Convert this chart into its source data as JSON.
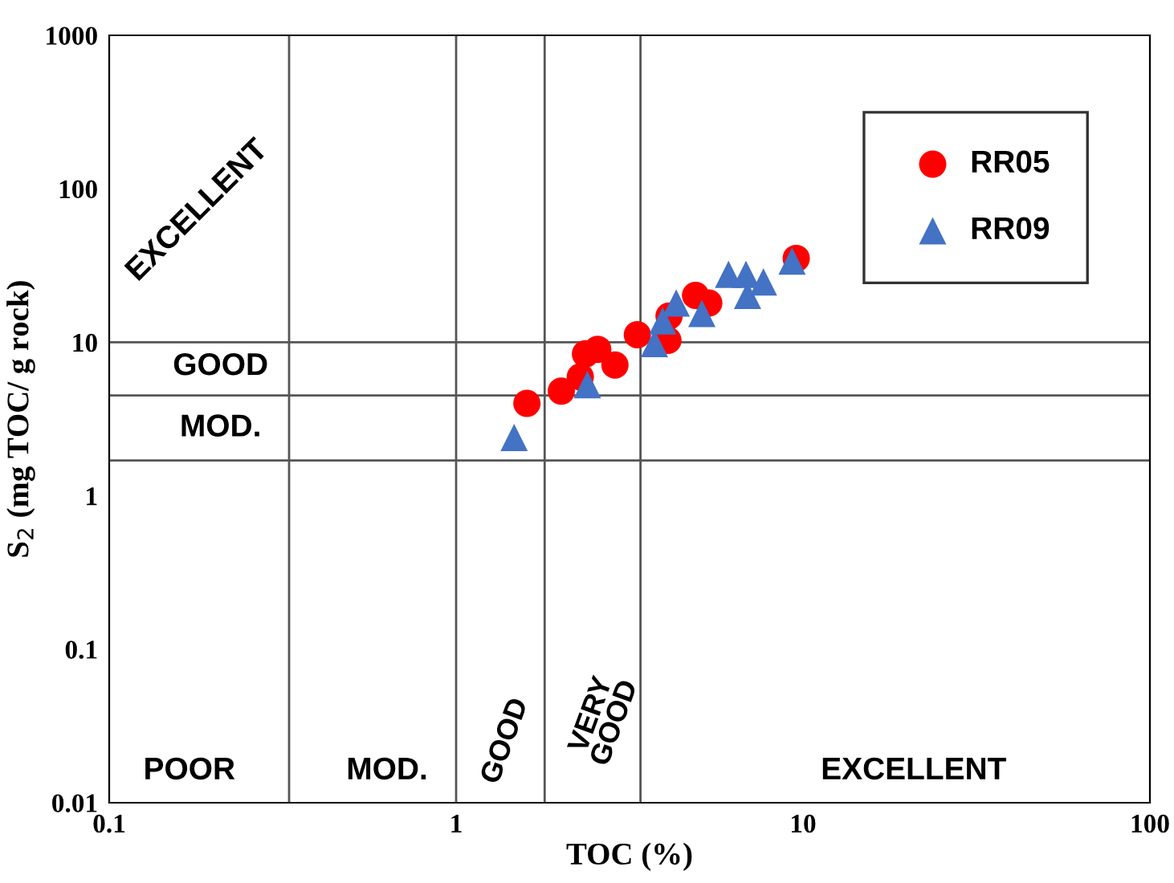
{
  "chart_data": {
    "type": "scatter",
    "xlabel": "TOC (%)",
    "ylabel": "S$_{2}$ (mg TOC/ g rock)",
    "log": "xy",
    "xlim": [
      0.1,
      100
    ],
    "ylim": [
      0.01,
      1000
    ],
    "xticks": [
      0.1,
      1,
      10,
      100
    ],
    "yticks": [
      0.01,
      0.1,
      1,
      10,
      100,
      1000
    ],
    "legend": "top right",
    "ref_lines": [
      {
        "axis": "y",
        "value": 10
      },
      {
        "axis": "y",
        "value": 4.5
      },
      {
        "axis": "y",
        "value": 1.7
      },
      {
        "axis": "x",
        "value": 0.33
      },
      {
        "axis": "x",
        "value": 1
      },
      {
        "axis": "x",
        "value": 1.8
      },
      {
        "axis": "x",
        "value": 3.4
      }
    ],
    "annotations": [
      "EXCELLENT",
      "GOOD",
      "MOD.",
      "POOR",
      "MOD.",
      "GOOD",
      "VERY\nGOOD",
      "EXCELLENT"
    ],
    "series": [
      {
        "name": "RR05",
        "color": "#ff0000",
        "marker": "circle",
        "x": [
          1.6,
          2.01,
          2.28,
          2.36,
          2.56,
          2.87,
          3.33,
          4.08,
          4.11,
          4.9,
          5.35,
          9.56
        ],
        "values": [
          4.0,
          4.8,
          5.95,
          8.4,
          9.0,
          7.1,
          11.2,
          10.3,
          14.8,
          20.2,
          18.0,
          35.2
        ]
      },
      {
        "name": "RR09",
        "color": "#4472c4",
        "marker": "triangle",
        "x": [
          1.47,
          2.39,
          3.73,
          3.94,
          4.31,
          5.11,
          6.1,
          6.85,
          6.92,
          7.69,
          9.3
        ],
        "values": [
          2.4,
          5.3,
          9.8,
          13.8,
          18.0,
          15.4,
          27.7,
          27.7,
          20.2,
          24.7,
          33.8
        ]
      }
    ]
  }
}
